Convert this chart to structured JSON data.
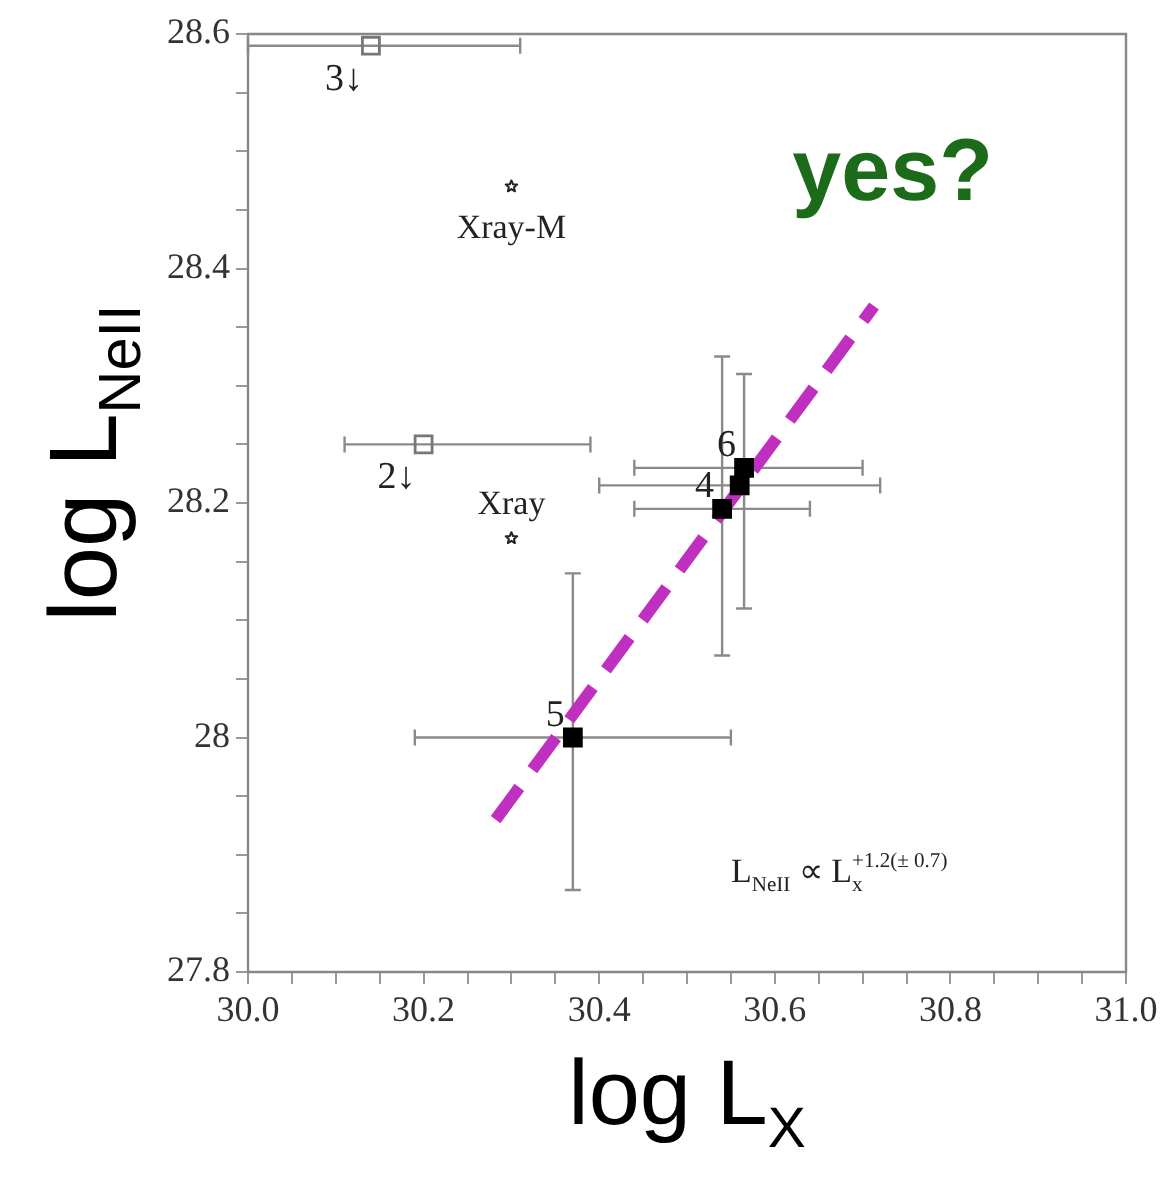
{
  "chart_data": {
    "type": "scatter",
    "xlabel": "log L$_{X}$",
    "ylabel": "log L$_{NeII}$",
    "xlim": [
      30.0,
      31.0
    ],
    "ylim": [
      27.8,
      28.6
    ],
    "xticks": [
      {
        "value": 30.0,
        "label": "30.0"
      },
      {
        "value": 30.05,
        "label": null
      },
      {
        "value": 30.1,
        "label": null
      },
      {
        "value": 30.15,
        "label": null
      },
      {
        "value": 30.2,
        "label": "30.2"
      },
      {
        "value": 30.25,
        "label": null
      },
      {
        "value": 30.3,
        "label": null
      },
      {
        "value": 30.35,
        "label": null
      },
      {
        "value": 30.4,
        "label": "30.4"
      },
      {
        "value": 30.45,
        "label": null
      },
      {
        "value": 30.5,
        "label": null
      },
      {
        "value": 30.55,
        "label": null
      },
      {
        "value": 30.6,
        "label": "30.6"
      },
      {
        "value": 30.65,
        "label": null
      },
      {
        "value": 30.7,
        "label": null
      },
      {
        "value": 30.75,
        "label": null
      },
      {
        "value": 30.8,
        "label": "30.8"
      },
      {
        "value": 30.85,
        "label": null
      },
      {
        "value": 30.9,
        "label": null
      },
      {
        "value": 30.95,
        "label": null
      },
      {
        "value": 31.0,
        "label": "31.0"
      }
    ],
    "yticks": [
      27.8,
      {
        "value": 27.85,
        "label": null
      },
      {
        "value": 27.9,
        "label": null
      },
      {
        "value": 27.95,
        "label": null
      },
      28.0,
      {
        "value": 28.05,
        "label": null
      },
      {
        "value": 28.1,
        "label": null
      },
      {
        "value": 28.15,
        "label": null
      },
      28.2,
      {
        "value": 28.25,
        "label": null
      },
      {
        "value": 28.3,
        "label": null
      },
      {
        "value": 28.35,
        "label": null
      },
      28.4,
      {
        "value": 28.45,
        "label": null
      },
      {
        "value": 28.5,
        "label": null
      },
      {
        "value": 28.55,
        "label": null
      },
      28.6
    ],
    "grid": false,
    "legend": false,
    "series": [
      {
        "marker": "square",
        "color": "#777777",
        "x": [
          30.14,
          30.2
        ],
        "values": [
          28.59,
          28.25
        ],
        "xerrors": [
          [
            30.0,
            30.31
          ],
          [
            30.11,
            30.39
          ]
        ]
      },
      {
        "marker": "star",
        "color": "#222222",
        "x": [
          30.3,
          30.3
        ],
        "values": [
          28.47,
          28.17
        ]
      },
      {
        "marker": "square",
        "color": "#000000",
        "x": [
          30.37,
          30.54,
          30.56,
          30.565
        ],
        "values": [
          28.0,
          28.195,
          28.215,
          28.23
        ],
        "xerrors": [
          [
            30.19,
            30.55
          ],
          [
            30.44,
            30.64
          ],
          [
            30.4,
            30.72
          ],
          [
            30.44,
            30.7
          ]
        ],
        "errors": [
          [
            27.87,
            28.14
          ],
          [
            28.07,
            28.325
          ],
          null,
          [
            28.11,
            28.31
          ]
        ]
      },
      {
        "type": "line",
        "line_style": "dashed",
        "marker": "none",
        "color": "#c030c0",
        "x": [
          30.282,
          30.713
        ],
        "values": [
          27.93,
          28.368
        ]
      }
    ],
    "annotations": [
      {
        "text": "3↓",
        "x": 30.14,
        "y": 28.59
      },
      {
        "text": "2↓",
        "x": 30.2,
        "y": 28.25
      },
      {
        "text": "Xray-M",
        "x": 30.3,
        "y": 28.47
      },
      {
        "text": "Xray",
        "x": 30.3,
        "y": 28.17
      },
      {
        "text": "5",
        "x": 30.37,
        "y": 28.0
      },
      {
        "text": "4",
        "x": 30.54,
        "y": 28.195
      },
      {
        "text": "6",
        "x": 30.565,
        "y": 28.23
      },
      "L$_{NeII}$ ∝ L$_{x}$$^{+1.2(± 0.7)}$",
      "yes?"
    ]
  }
}
